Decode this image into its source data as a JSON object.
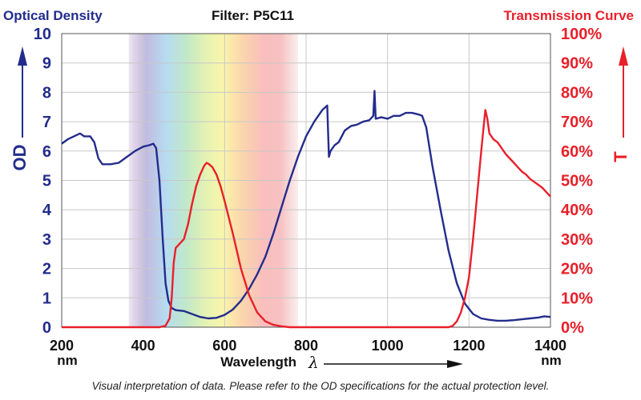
{
  "header": {
    "left_title": "Optical Density",
    "center_title": "Filter: P5C11",
    "right_title": "Transmission Curve"
  },
  "footer_note": "Visual interpretation of data. Please refer to the OD specifications for the actual protection level.",
  "colors": {
    "od": "#232c8c",
    "transmission": "#e8202a",
    "grid": "#c8c8c8"
  },
  "chart_data": {
    "type": "line",
    "xlabel": "Wavelength",
    "xlabel_symbol": "λ",
    "xunit": "nm",
    "xlim": [
      200,
      1400
    ],
    "xticks": [
      200,
      400,
      600,
      800,
      1000,
      1200,
      1400
    ],
    "ylabel_left": "OD",
    "ylim_left": [
      0,
      10
    ],
    "yticks_left": [
      "0",
      "1",
      "2",
      "3",
      "4",
      "5",
      "6",
      "7",
      "8",
      "9",
      "10"
    ],
    "ylabel_right": "T",
    "ylim_right": [
      0,
      100
    ],
    "yticks_right": [
      "0%",
      "10%",
      "20%",
      "30%",
      "40%",
      "50%",
      "60%",
      "70%",
      "80%",
      "90%",
      "100%"
    ],
    "grid": true,
    "visible_spectrum_band": [
      365,
      780
    ],
    "series": [
      {
        "axis": "left",
        "points": [
          [
            200,
            6.25
          ],
          [
            215,
            6.4
          ],
          [
            230,
            6.5
          ],
          [
            245,
            6.6
          ],
          [
            255,
            6.5
          ],
          [
            270,
            6.5
          ],
          [
            280,
            6.3
          ],
          [
            290,
            5.75
          ],
          [
            300,
            5.55
          ],
          [
            320,
            5.55
          ],
          [
            340,
            5.6
          ],
          [
            360,
            5.8
          ],
          [
            380,
            6.0
          ],
          [
            400,
            6.15
          ],
          [
            415,
            6.2
          ],
          [
            425,
            6.25
          ],
          [
            432,
            6.1
          ],
          [
            440,
            5.0
          ],
          [
            448,
            3.0
          ],
          [
            455,
            1.5
          ],
          [
            462,
            0.9
          ],
          [
            470,
            0.65
          ],
          [
            480,
            0.58
          ],
          [
            500,
            0.55
          ],
          [
            520,
            0.45
          ],
          [
            540,
            0.35
          ],
          [
            560,
            0.3
          ],
          [
            580,
            0.32
          ],
          [
            600,
            0.42
          ],
          [
            620,
            0.6
          ],
          [
            640,
            0.9
          ],
          [
            660,
            1.3
          ],
          [
            680,
            1.8
          ],
          [
            700,
            2.4
          ],
          [
            720,
            3.2
          ],
          [
            740,
            4.1
          ],
          [
            760,
            5.0
          ],
          [
            780,
            5.8
          ],
          [
            800,
            6.5
          ],
          [
            820,
            7.0
          ],
          [
            840,
            7.4
          ],
          [
            852,
            7.55
          ],
          [
            856,
            5.8
          ],
          [
            860,
            6.0
          ],
          [
            870,
            6.2
          ],
          [
            880,
            6.3
          ],
          [
            895,
            6.7
          ],
          [
            910,
            6.85
          ],
          [
            925,
            6.9
          ],
          [
            940,
            7.0
          ],
          [
            955,
            7.05
          ],
          [
            965,
            7.2
          ],
          [
            968,
            8.05
          ],
          [
            971,
            7.1
          ],
          [
            985,
            7.15
          ],
          [
            1000,
            7.1
          ],
          [
            1015,
            7.2
          ],
          [
            1030,
            7.2
          ],
          [
            1045,
            7.3
          ],
          [
            1060,
            7.3
          ],
          [
            1075,
            7.25
          ],
          [
            1085,
            7.2
          ],
          [
            1095,
            6.8
          ],
          [
            1110,
            5.5
          ],
          [
            1130,
            4.0
          ],
          [
            1150,
            2.6
          ],
          [
            1170,
            1.5
          ],
          [
            1190,
            0.8
          ],
          [
            1210,
            0.45
          ],
          [
            1230,
            0.3
          ],
          [
            1250,
            0.25
          ],
          [
            1270,
            0.22
          ],
          [
            1290,
            0.22
          ],
          [
            1310,
            0.24
          ],
          [
            1330,
            0.27
          ],
          [
            1350,
            0.3
          ],
          [
            1370,
            0.33
          ],
          [
            1385,
            0.37
          ],
          [
            1400,
            0.35
          ]
        ]
      },
      {
        "axis": "right",
        "points": [
          [
            200,
            0
          ],
          [
            440,
            0
          ],
          [
            455,
            0.5
          ],
          [
            465,
            3
          ],
          [
            470,
            10
          ],
          [
            475,
            22
          ],
          [
            480,
            27
          ],
          [
            490,
            28.5
          ],
          [
            500,
            30
          ],
          [
            510,
            35
          ],
          [
            520,
            42
          ],
          [
            530,
            48
          ],
          [
            540,
            52
          ],
          [
            550,
            55
          ],
          [
            556,
            56
          ],
          [
            562,
            55.5
          ],
          [
            570,
            54.5
          ],
          [
            580,
            52
          ],
          [
            590,
            48
          ],
          [
            600,
            43
          ],
          [
            620,
            32
          ],
          [
            640,
            20
          ],
          [
            660,
            11
          ],
          [
            680,
            5
          ],
          [
            700,
            2
          ],
          [
            720,
            0.8
          ],
          [
            740,
            0.3
          ],
          [
            760,
            0
          ],
          [
            1150,
            0
          ],
          [
            1160,
            0.5
          ],
          [
            1170,
            2
          ],
          [
            1180,
            5
          ],
          [
            1190,
            10
          ],
          [
            1200,
            17
          ],
          [
            1210,
            30
          ],
          [
            1220,
            45
          ],
          [
            1230,
            60
          ],
          [
            1240,
            74
          ],
          [
            1245,
            71
          ],
          [
            1250,
            66
          ],
          [
            1260,
            64
          ],
          [
            1270,
            63
          ],
          [
            1280,
            61
          ],
          [
            1290,
            59
          ],
          [
            1300,
            57.5
          ],
          [
            1310,
            56
          ],
          [
            1320,
            54.5
          ],
          [
            1330,
            53
          ],
          [
            1340,
            52
          ],
          [
            1350,
            50.5
          ],
          [
            1360,
            49.5
          ],
          [
            1370,
            48.5
          ],
          [
            1380,
            47.5
          ],
          [
            1390,
            46
          ],
          [
            1400,
            44.5
          ]
        ]
      }
    ]
  }
}
